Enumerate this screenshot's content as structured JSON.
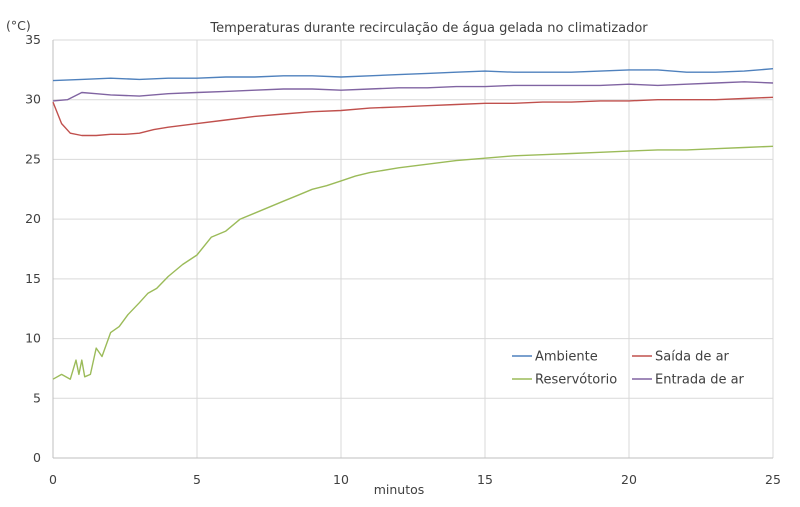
{
  "chart_data": {
    "type": "line",
    "title": "Temperaturas durante recirculação de água gelada no climatizador",
    "xlabel": "minutos",
    "ylabel": "(°C)",
    "xlim": [
      0,
      25
    ],
    "ylim": [
      0,
      35
    ],
    "x_ticks": [
      "0",
      "5",
      "10",
      "15",
      "20",
      "25"
    ],
    "y_ticks": [
      "0",
      "5",
      "10",
      "15",
      "20",
      "25",
      "30",
      "35"
    ],
    "grid": true,
    "legend_position": "bottom-right",
    "series": [
      {
        "name": "Ambiente",
        "color": "#4f81bd",
        "x": [
          0,
          1,
          2,
          3,
          4,
          5,
          6,
          7,
          8,
          9,
          10,
          11,
          12,
          13,
          14,
          15,
          16,
          17,
          18,
          19,
          20,
          21,
          22,
          23,
          24,
          25
        ],
        "y": [
          31.6,
          31.7,
          31.8,
          31.7,
          31.8,
          31.8,
          31.9,
          31.9,
          32.0,
          32.0,
          31.9,
          32.0,
          32.1,
          32.2,
          32.3,
          32.4,
          32.3,
          32.3,
          32.3,
          32.4,
          32.5,
          32.5,
          32.3,
          32.3,
          32.4,
          32.6
        ]
      },
      {
        "name": "Saída de ar",
        "color": "#c0504d",
        "x": [
          0,
          0.3,
          0.6,
          1,
          1.5,
          2,
          2.5,
          3,
          3.5,
          4,
          5,
          6,
          7,
          8,
          9,
          10,
          11,
          12,
          13,
          14,
          15,
          16,
          17,
          18,
          19,
          20,
          21,
          22,
          23,
          24,
          25
        ],
        "y": [
          29.8,
          28.0,
          27.2,
          27.0,
          27.0,
          27.1,
          27.1,
          27.2,
          27.5,
          27.7,
          28.0,
          28.3,
          28.6,
          28.8,
          29.0,
          29.1,
          29.3,
          29.4,
          29.5,
          29.6,
          29.7,
          29.7,
          29.8,
          29.8,
          29.9,
          29.9,
          30.0,
          30.0,
          30.0,
          30.1,
          30.2
        ]
      },
      {
        "name": "Reservótorio",
        "color": "#9bbb59",
        "x": [
          0,
          0.3,
          0.6,
          0.8,
          0.9,
          1.0,
          1.1,
          1.3,
          1.5,
          1.7,
          2.0,
          2.3,
          2.6,
          3.0,
          3.3,
          3.6,
          4.0,
          4.5,
          5.0,
          5.5,
          6.0,
          6.5,
          7.0,
          7.5,
          8.0,
          8.5,
          9.0,
          9.5,
          10.0,
          10.5,
          11.0,
          12.0,
          13.0,
          14.0,
          15.0,
          16.0,
          17.0,
          18.0,
          19.0,
          20.0,
          21.0,
          22.0,
          23.0,
          24.0,
          25.0
        ],
        "y": [
          6.6,
          7.0,
          6.6,
          8.2,
          7.0,
          8.2,
          6.8,
          7.0,
          9.2,
          8.5,
          10.5,
          11.0,
          12.0,
          13.0,
          13.8,
          14.2,
          15.2,
          16.2,
          17.0,
          18.5,
          19.0,
          20.0,
          20.5,
          21.0,
          21.5,
          22.0,
          22.5,
          22.8,
          23.2,
          23.6,
          23.9,
          24.3,
          24.6,
          24.9,
          25.1,
          25.3,
          25.4,
          25.5,
          25.6,
          25.7,
          25.8,
          25.8,
          25.9,
          26.0,
          26.1
        ]
      },
      {
        "name": "Entrada de ar",
        "color": "#8064a2",
        "x": [
          0,
          0.5,
          1,
          1.5,
          2,
          3,
          4,
          5,
          6,
          7,
          8,
          9,
          10,
          11,
          12,
          13,
          14,
          15,
          16,
          17,
          18,
          19,
          20,
          21,
          22,
          23,
          24,
          25
        ],
        "y": [
          29.9,
          30.0,
          30.6,
          30.5,
          30.4,
          30.3,
          30.5,
          30.6,
          30.7,
          30.8,
          30.9,
          30.9,
          30.8,
          30.9,
          31.0,
          31.0,
          31.1,
          31.1,
          31.2,
          31.2,
          31.2,
          31.2,
          31.3,
          31.2,
          31.3,
          31.4,
          31.5,
          31.4
        ]
      }
    ]
  }
}
